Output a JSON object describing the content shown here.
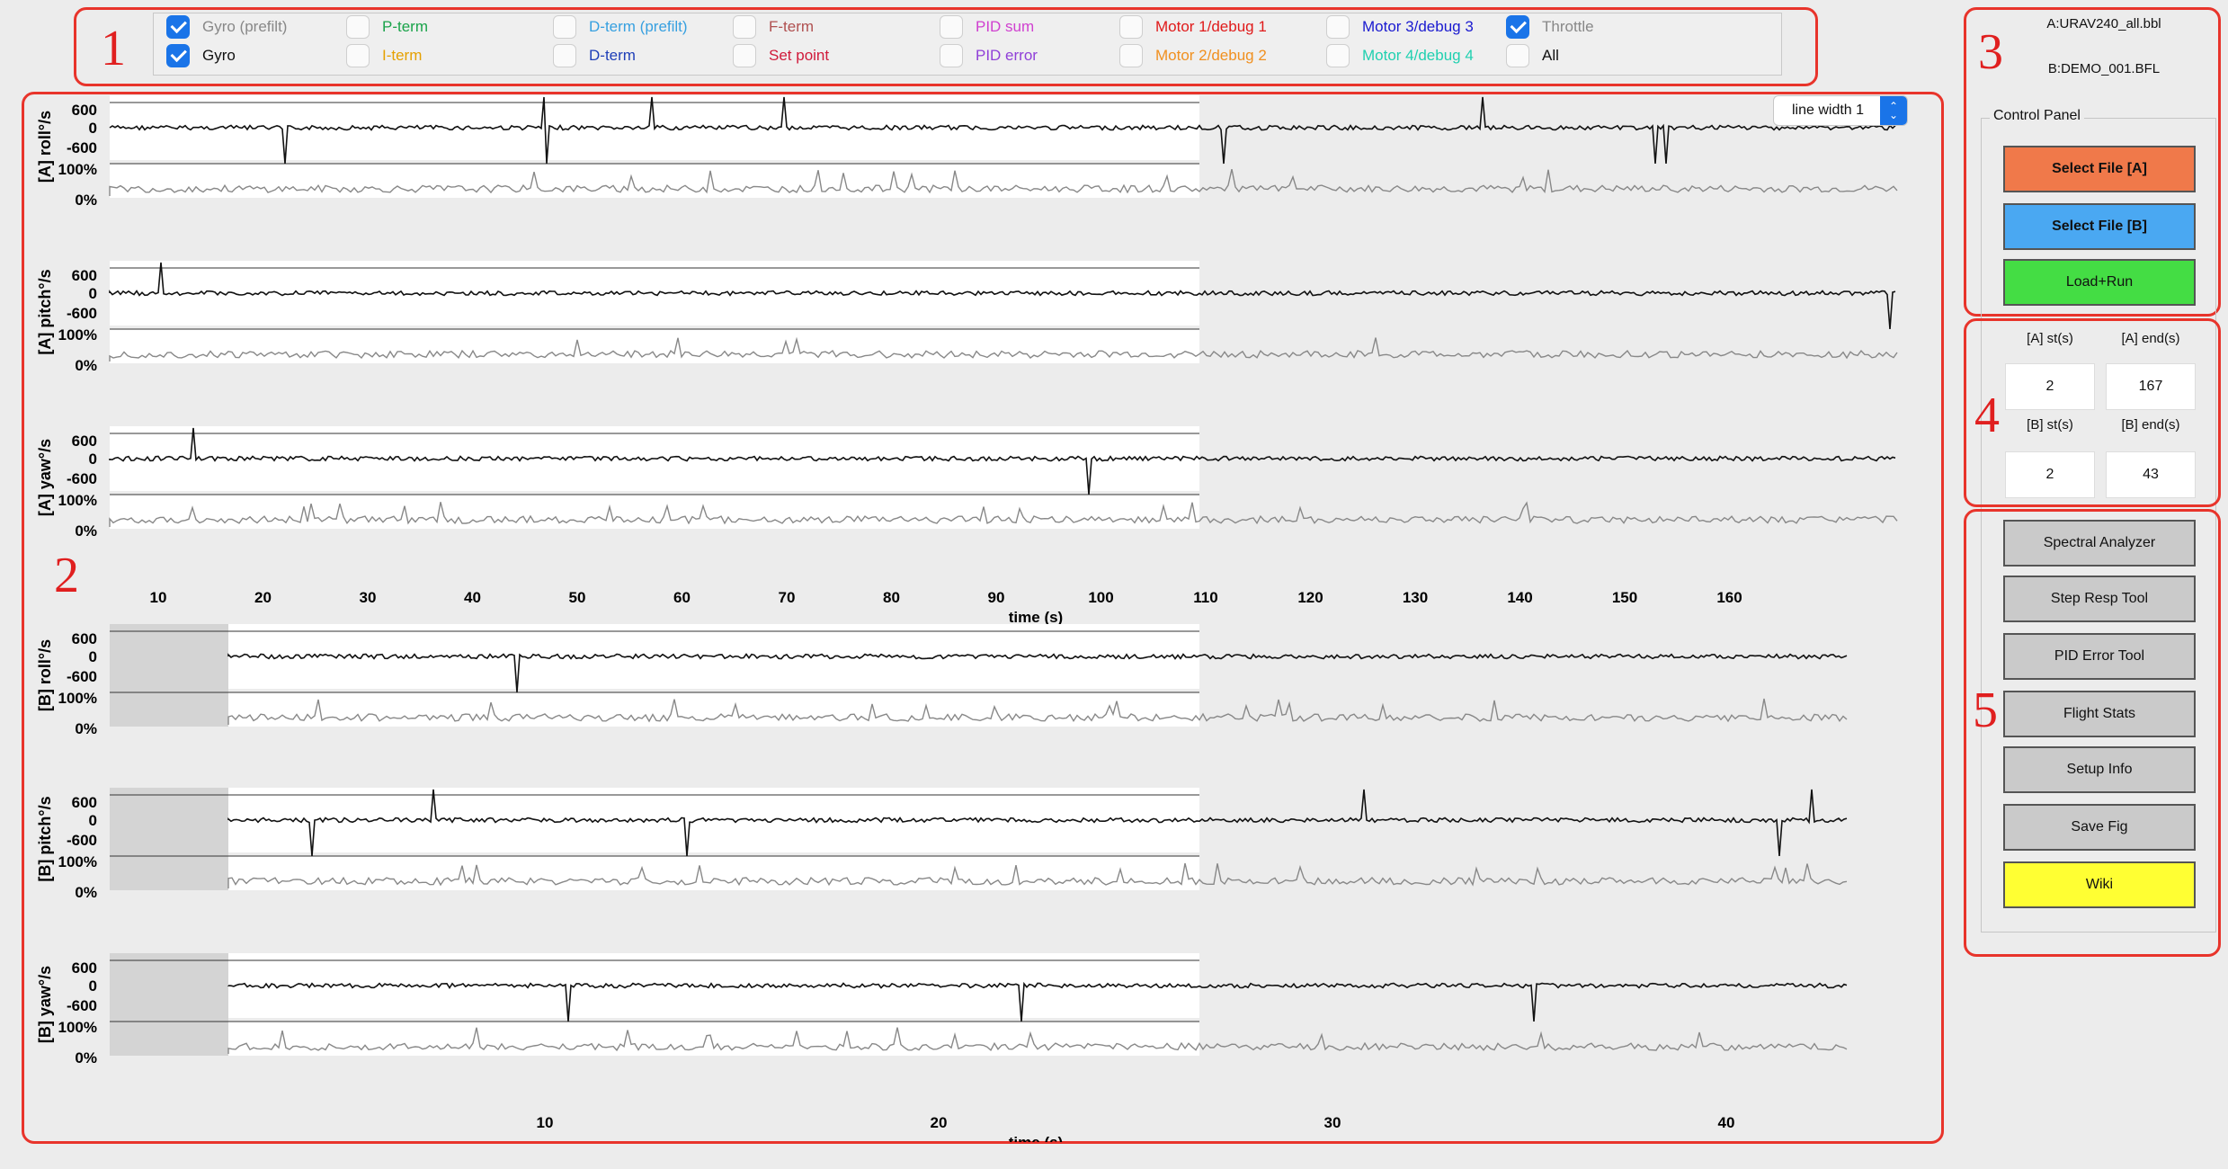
{
  "legend": {
    "items": [
      {
        "label": "Gyro (prefilt)",
        "checked": true,
        "color": "#888888"
      },
      {
        "label": "Gyro",
        "checked": true,
        "color": "#111111"
      },
      {
        "label": "P-term",
        "checked": false,
        "color": "#1aa34a"
      },
      {
        "label": "I-term",
        "checked": false,
        "color": "#e5a000"
      },
      {
        "label": "D-term (prefilt)",
        "checked": false,
        "color": "#37a0e0"
      },
      {
        "label": "D-term",
        "checked": false,
        "color": "#1f3fb8"
      },
      {
        "label": "F-term",
        "checked": false,
        "color": "#b05050"
      },
      {
        "label": "Set point",
        "checked": false,
        "color": "#d01a3a"
      },
      {
        "label": "PID sum",
        "checked": false,
        "color": "#d040d0"
      },
      {
        "label": "PID error",
        "checked": false,
        "color": "#9040d8"
      },
      {
        "label": "Motor 1/debug 1",
        "checked": false,
        "color": "#e01a1a"
      },
      {
        "label": "Motor 2/debug 2",
        "checked": false,
        "color": "#f09020"
      },
      {
        "label": "Motor 3/debug 3",
        "checked": false,
        "color": "#1a1ad0"
      },
      {
        "label": "Motor 4/debug 4",
        "checked": false,
        "color": "#20d0b0"
      },
      {
        "label": "Throttle",
        "checked": true,
        "color": "#888888"
      },
      {
        "label": "All",
        "checked": false,
        "color": "#111111"
      }
    ]
  },
  "annotations": [
    "1",
    "2",
    "3",
    "4",
    "5"
  ],
  "linewidth": {
    "label": "line width 1"
  },
  "plotsA": {
    "panels": [
      {
        "label": "[A] roll°/s"
      },
      {
        "label": "[A] pitch°/s"
      },
      {
        "label": "[A] yaw°/s"
      }
    ],
    "xticks": [
      "10",
      "20",
      "30",
      "40",
      "50",
      "60",
      "70",
      "80",
      "90",
      "100",
      "110",
      "120",
      "130",
      "140",
      "150",
      "160"
    ],
    "xlabel": "time (s)"
  },
  "plotsB": {
    "panels": [
      {
        "label": "[B] roll°/s"
      },
      {
        "label": "[B] pitch°/s"
      },
      {
        "label": "[B] yaw°/s"
      }
    ],
    "xticks": [
      "10",
      "20",
      "30",
      "40"
    ],
    "xlabel": "time (s)"
  },
  "yticks": {
    "rate": [
      "600",
      "0",
      "-600"
    ],
    "thr": [
      "100%",
      "0%"
    ]
  },
  "files": {
    "a": "A:URAV240_all.bbl",
    "b": "B:DEMO_001.BFL"
  },
  "control_panel": {
    "title": "Control Panel",
    "select_a": "Select File [A]",
    "select_b": "Select File [B]",
    "load": "Load+Run"
  },
  "ranges": {
    "a_st_label": "[A] st(s)",
    "a_end_label": "[A] end(s)",
    "a_st": "2",
    "a_end": "167",
    "b_st_label": "[B] st(s)",
    "b_end_label": "[B] end(s)",
    "b_st": "2",
    "b_end": "43"
  },
  "tools": [
    "Spectral Analyzer",
    "Step Resp Tool",
    "PID Error Tool",
    "Flight Stats",
    "Setup Info",
    "Save Fig",
    "Wiki"
  ],
  "colors": {
    "select_a": "#f0794a",
    "select_b": "#4aa8f2",
    "load": "#44dd44",
    "wiki": "#ffff33",
    "tool": "#cacaca",
    "annotation": "#e8342b"
  }
}
